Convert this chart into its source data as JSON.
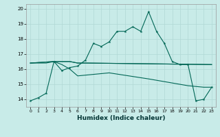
{
  "xlabel": "Humidex (Indice chaleur)",
  "background_color": "#c8ebe8",
  "grid_color": "#b0d8d5",
  "line_color": "#006655",
  "xlim": [
    -0.5,
    23.5
  ],
  "ylim": [
    13.5,
    20.3
  ],
  "yticks": [
    14,
    15,
    16,
    17,
    18,
    19,
    20
  ],
  "xticks": [
    0,
    1,
    2,
    3,
    4,
    5,
    6,
    7,
    8,
    9,
    10,
    11,
    12,
    13,
    14,
    15,
    16,
    17,
    18,
    19,
    20,
    21,
    22,
    23
  ],
  "s1_x": [
    0,
    1,
    2,
    3,
    4,
    5,
    6,
    7,
    8,
    9,
    10,
    11,
    12,
    13,
    14,
    15,
    16,
    17,
    18,
    19,
    20,
    21,
    22,
    23
  ],
  "s1_y": [
    13.9,
    14.1,
    14.4,
    16.5,
    15.9,
    16.1,
    16.2,
    16.6,
    17.7,
    17.5,
    17.8,
    18.5,
    18.5,
    18.8,
    18.5,
    19.8,
    18.5,
    17.7,
    16.5,
    16.3,
    16.3,
    13.9,
    14.0,
    14.8
  ],
  "s2_x": [
    0,
    3,
    4,
    5,
    6,
    7,
    23
  ],
  "s2_y": [
    16.4,
    16.5,
    16.5,
    16.5,
    16.4,
    16.4,
    16.3
  ],
  "s3_x": [
    0,
    3,
    4,
    5,
    6,
    7,
    10,
    15,
    20,
    21,
    22,
    23
  ],
  "s3_y": [
    16.4,
    16.5,
    16.3,
    16.0,
    15.55,
    15.6,
    15.75,
    15.35,
    14.9,
    14.85,
    14.8,
    14.8
  ],
  "s4_x": [
    0,
    1,
    2,
    3,
    4,
    5,
    6,
    7,
    23
  ],
  "s4_y": [
    16.4,
    16.4,
    16.4,
    16.5,
    16.5,
    16.5,
    16.4,
    16.4,
    16.3
  ]
}
